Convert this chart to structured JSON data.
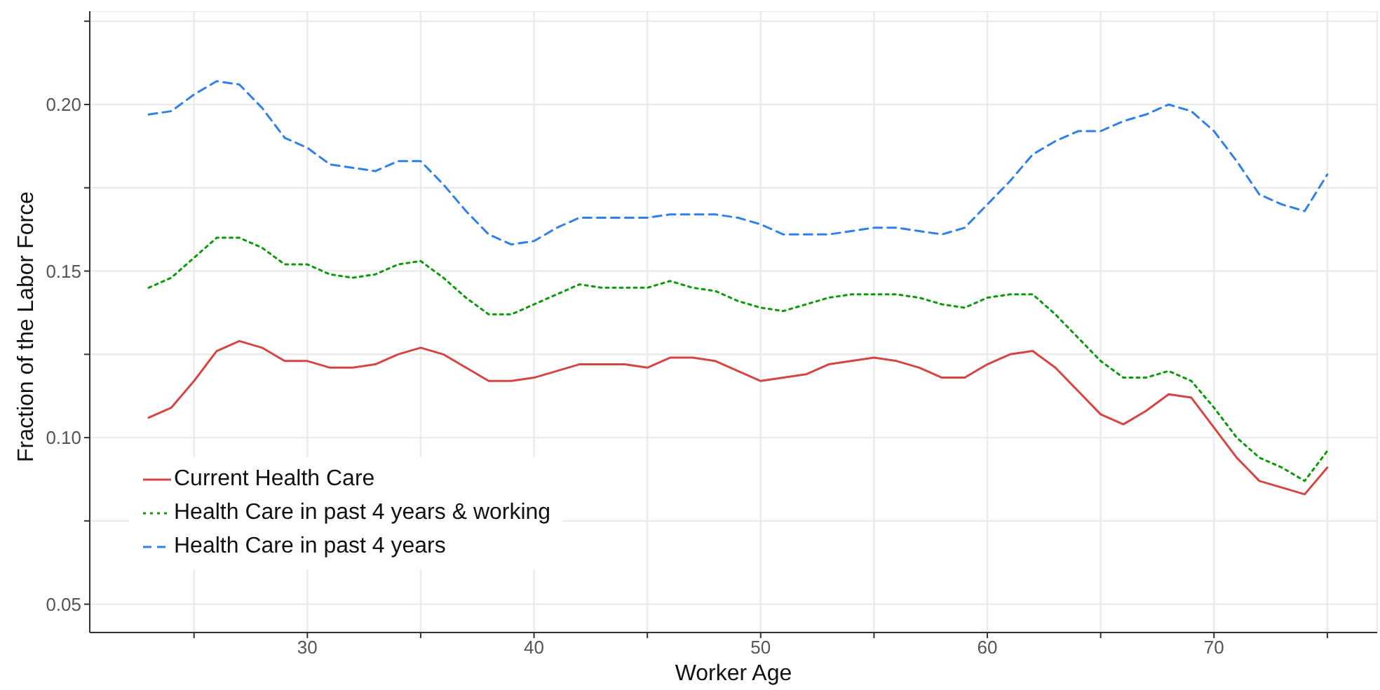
{
  "chart_data": {
    "type": "line",
    "xlabel": "Worker Age",
    "ylabel": "Fraction of the Labor Force",
    "x": [
      23,
      24,
      25,
      26,
      27,
      28,
      29,
      30,
      31,
      32,
      33,
      34,
      35,
      36,
      37,
      38,
      39,
      40,
      41,
      42,
      43,
      44,
      45,
      46,
      47,
      48,
      49,
      50,
      51,
      52,
      53,
      54,
      55,
      56,
      57,
      58,
      59,
      60,
      61,
      62,
      63,
      64,
      65,
      66,
      67,
      68,
      69,
      70,
      71,
      72,
      73,
      74,
      75
    ],
    "series": [
      {
        "name": "Current Health Care",
        "color": "#d64541",
        "line_style": "solid",
        "values": [
          0.106,
          0.109,
          0.117,
          0.126,
          0.129,
          0.127,
          0.123,
          0.123,
          0.121,
          0.121,
          0.122,
          0.125,
          0.127,
          0.125,
          0.121,
          0.117,
          0.117,
          0.118,
          0.12,
          0.122,
          0.122,
          0.122,
          0.121,
          0.124,
          0.124,
          0.123,
          0.12,
          0.117,
          0.118,
          0.119,
          0.122,
          0.123,
          0.124,
          0.123,
          0.121,
          0.118,
          0.118,
          0.122,
          0.125,
          0.126,
          0.121,
          0.114,
          0.107,
          0.104,
          0.108,
          0.113,
          0.112,
          0.103,
          0.094,
          0.087,
          0.085,
          0.083,
          0.091
        ]
      },
      {
        "name": "Health Care in past 4 years & working",
        "color": "#0a9a0a",
        "line_style": "dotted",
        "values": [
          0.145,
          0.148,
          0.154,
          0.16,
          0.16,
          0.157,
          0.152,
          0.152,
          0.149,
          0.148,
          0.149,
          0.152,
          0.153,
          0.148,
          0.142,
          0.137,
          0.137,
          0.14,
          0.143,
          0.146,
          0.145,
          0.145,
          0.145,
          0.147,
          0.145,
          0.144,
          0.141,
          0.139,
          0.138,
          0.14,
          0.142,
          0.143,
          0.143,
          0.143,
          0.142,
          0.14,
          0.139,
          0.142,
          0.143,
          0.143,
          0.137,
          0.13,
          0.123,
          0.118,
          0.118,
          0.12,
          0.117,
          0.109,
          0.1,
          0.094,
          0.091,
          0.087,
          0.096
        ]
      },
      {
        "name": "Health Care in past 4 years",
        "color": "#2f80ed",
        "line_style": "dashed",
        "values": [
          0.197,
          0.198,
          0.203,
          0.207,
          0.206,
          0.199,
          0.19,
          0.187,
          0.182,
          0.181,
          0.18,
          0.183,
          0.183,
          0.176,
          0.168,
          0.161,
          0.158,
          0.159,
          0.163,
          0.166,
          0.166,
          0.166,
          0.166,
          0.167,
          0.167,
          0.167,
          0.166,
          0.164,
          0.161,
          0.161,
          0.161,
          0.162,
          0.163,
          0.163,
          0.162,
          0.161,
          0.163,
          0.17,
          0.177,
          0.185,
          0.189,
          0.192,
          0.192,
          0.195,
          0.197,
          0.2,
          0.198,
          0.192,
          0.183,
          0.173,
          0.17,
          0.168,
          0.179
        ]
      }
    ],
    "xlim": [
      20.4,
      77.2
    ],
    "xticks": [
      {
        "value": 25,
        "label": null
      },
      30,
      {
        "value": 35,
        "label": null
      },
      40,
      {
        "value": 45,
        "label": null
      },
      50,
      {
        "value": 55,
        "label": null
      },
      60,
      {
        "value": 65,
        "label": null
      },
      70,
      {
        "value": 75,
        "label": null
      }
    ],
    "ylim": [
      0.0415,
      0.228
    ],
    "yticks": [
      0.05,
      {
        "value": 0.075,
        "label": null
      },
      "0.10",
      {
        "value": 0.125,
        "label": null
      },
      0.15,
      {
        "value": 0.175,
        "label": null
      },
      "0.20",
      {
        "value": 0.225,
        "label": null
      }
    ],
    "grid": true,
    "legend": "bottom left",
    "marker": "none"
  }
}
